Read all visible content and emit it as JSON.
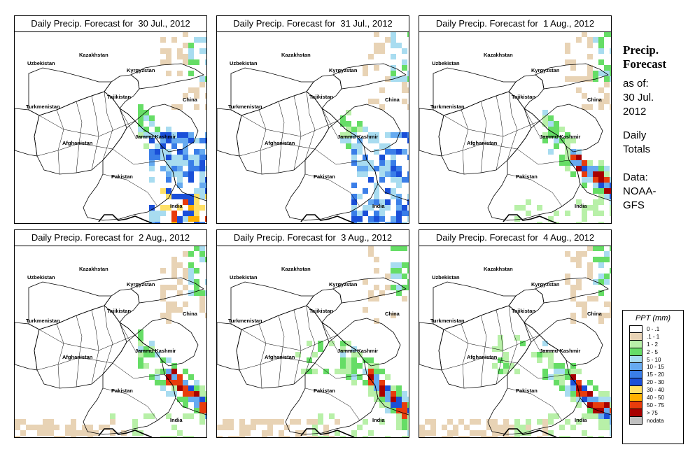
{
  "panels": [
    {
      "title": "Daily Precip. Forecast for  30 Jul., 2012",
      "pattern": 0
    },
    {
      "title": "Daily Precip. Forecast for  31 Jul., 2012",
      "pattern": 1
    },
    {
      "title": "Daily Precip. Forecast for  1 Aug., 2012",
      "pattern": 2
    },
    {
      "title": "Daily Precip. Forecast for  2 Aug., 2012",
      "pattern": 3
    },
    {
      "title": "Daily Precip. Forecast for  3 Aug., 2012",
      "pattern": 4
    },
    {
      "title": "Daily Precip. Forecast for  4 Aug., 2012",
      "pattern": 5
    }
  ],
  "map_labels": {
    "uzbekistan": "Uzbekistan",
    "kazakhstan": "Kazakhstan",
    "kyrgyzstan": "Kyrgyzstan",
    "tajikistan": "Tajikistan",
    "turkmenistan": "Turkmenistan",
    "china": "China",
    "jammu_kashmir": "Jammu Kashmir",
    "afghanistan": "Afghanistan",
    "pakistan": "Pakistan",
    "india": "India"
  },
  "sidebar": {
    "heading1": "Precip.",
    "heading2": "Forecast",
    "asof1": "as of:",
    "asof2": "30 Jul.",
    "asof3": "2012",
    "totals1": "Daily",
    "totals2": "Totals",
    "data1": "Data:",
    "data2": "NOAA-",
    "data3": "GFS"
  },
  "legend": {
    "title": "PPT (mm)",
    "items": [
      {
        "label": "0 - .1",
        "color": "#ffffff"
      },
      {
        "label": ".1 - 1",
        "color": "#e8d3b5"
      },
      {
        "label": "1 - 2",
        "color": "#b8f0a8"
      },
      {
        "label": "2 - 5",
        "color": "#66dd66"
      },
      {
        "label": "5 - 10",
        "color": "#a8dcf0"
      },
      {
        "label": "10 - 15",
        "color": "#66aaf0"
      },
      {
        "label": "15 - 20",
        "color": "#3a7ee8"
      },
      {
        "label": "20 - 30",
        "color": "#1a4fd8"
      },
      {
        "label": "30 - 40",
        "color": "#ffe066"
      },
      {
        "label": "40 - 50",
        "color": "#ffb000"
      },
      {
        "label": "50 - 75",
        "color": "#e83c0c"
      },
      {
        "label": "> 75",
        "color": "#a80000"
      },
      {
        "label": "nodata",
        "color": "#c0c0c0"
      }
    ]
  }
}
